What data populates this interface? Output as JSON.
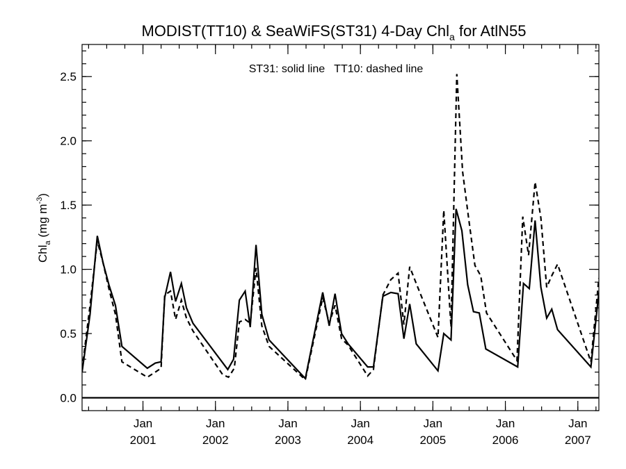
{
  "chart_data": {
    "type": "line",
    "title": {
      "main": "MODIST(TT10) & SeaWiFS(ST31) 4-Day Chl",
      "sub": "a",
      "suffix": " for AtlN55"
    },
    "annotation": "ST31: solid line   TT10: dashed line",
    "ylabel": {
      "main": "Chl",
      "sub": "a",
      "mid": " (mg m",
      "sup": "-3",
      "end": ")"
    },
    "xlim": [
      2000.16,
      2007.29
    ],
    "ylim": [
      -0.1,
      2.75
    ],
    "y_ticks": [
      {
        "value": 0.0,
        "label": "0.0"
      },
      {
        "value": 0.5,
        "label": "0.5"
      },
      {
        "value": 1.0,
        "label": "1.0"
      },
      {
        "value": 1.5,
        "label": "1.5"
      },
      {
        "value": 2.0,
        "label": "2.0"
      },
      {
        "value": 2.5,
        "label": "2.5"
      }
    ],
    "y_minor_step": 0.1,
    "x_ticks": [
      {
        "value": 2001.0,
        "month": "Jan",
        "year": "2001"
      },
      {
        "value": 2002.0,
        "month": "Jan",
        "year": "2002"
      },
      {
        "value": 2003.0,
        "month": "Jan",
        "year": "2003"
      },
      {
        "value": 2004.0,
        "month": "Jan",
        "year": "2004"
      },
      {
        "value": 2005.0,
        "month": "Jan",
        "year": "2005"
      },
      {
        "value": 2006.0,
        "month": "Jan",
        "year": "2006"
      },
      {
        "value": 2007.0,
        "month": "Jan",
        "year": "2007"
      }
    ],
    "x_minor_step": 0.25,
    "reference_line_y": 0.0,
    "grid": false,
    "legend": "none",
    "series": [
      {
        "style": "solid",
        "points": [
          [
            2000.16,
            0.2
          ],
          [
            2000.27,
            0.65
          ],
          [
            2000.37,
            1.26
          ],
          [
            2000.45,
            1.05
          ],
          [
            2000.53,
            0.88
          ],
          [
            2000.62,
            0.72
          ],
          [
            2000.71,
            0.4
          ],
          [
            2001.06,
            0.23
          ],
          [
            2001.17,
            0.27
          ],
          [
            2001.25,
            0.28
          ],
          [
            2001.3,
            0.78
          ],
          [
            2001.38,
            0.98
          ],
          [
            2001.45,
            0.75
          ],
          [
            2001.53,
            0.89
          ],
          [
            2001.6,
            0.7
          ],
          [
            2001.69,
            0.58
          ],
          [
            2002.17,
            0.22
          ],
          [
            2002.25,
            0.3
          ],
          [
            2002.33,
            0.76
          ],
          [
            2002.41,
            0.83
          ],
          [
            2002.48,
            0.55
          ],
          [
            2002.56,
            1.19
          ],
          [
            2002.64,
            0.65
          ],
          [
            2002.74,
            0.45
          ],
          [
            2003.24,
            0.15
          ],
          [
            2003.48,
            0.82
          ],
          [
            2003.57,
            0.56
          ],
          [
            2003.65,
            0.81
          ],
          [
            2003.74,
            0.5
          ],
          [
            2003.83,
            0.42
          ],
          [
            2004.1,
            0.24
          ],
          [
            2004.18,
            0.24
          ],
          [
            2004.31,
            0.79
          ],
          [
            2004.42,
            0.82
          ],
          [
            2004.52,
            0.81
          ],
          [
            2004.6,
            0.46
          ],
          [
            2004.68,
            0.73
          ],
          [
            2004.77,
            0.42
          ],
          [
            2005.07,
            0.21
          ],
          [
            2005.15,
            0.5
          ],
          [
            2005.25,
            0.45
          ],
          [
            2005.32,
            1.47
          ],
          [
            2005.4,
            1.3
          ],
          [
            2005.48,
            0.88
          ],
          [
            2005.56,
            0.67
          ],
          [
            2005.64,
            0.66
          ],
          [
            2005.73,
            0.38
          ],
          [
            2006.17,
            0.24
          ],
          [
            2006.25,
            0.89
          ],
          [
            2006.33,
            0.85
          ],
          [
            2006.41,
            1.38
          ],
          [
            2006.49,
            0.86
          ],
          [
            2006.57,
            0.62
          ],
          [
            2006.64,
            0.69
          ],
          [
            2006.72,
            0.53
          ],
          [
            2007.18,
            0.24
          ],
          [
            2007.29,
            0.82
          ]
        ]
      },
      {
        "style": "dashed",
        "points": [
          [
            2000.16,
            0.22
          ],
          [
            2000.27,
            0.72
          ],
          [
            2000.37,
            1.22
          ],
          [
            2000.45,
            1.05
          ],
          [
            2000.53,
            0.85
          ],
          [
            2000.62,
            0.65
          ],
          [
            2000.71,
            0.28
          ],
          [
            2001.06,
            0.16
          ],
          [
            2001.17,
            0.2
          ],
          [
            2001.25,
            0.23
          ],
          [
            2001.3,
            0.8
          ],
          [
            2001.38,
            0.83
          ],
          [
            2001.45,
            0.61
          ],
          [
            2001.53,
            0.76
          ],
          [
            2001.6,
            0.62
          ],
          [
            2001.69,
            0.52
          ],
          [
            2002.1,
            0.18
          ],
          [
            2002.18,
            0.16
          ],
          [
            2002.26,
            0.23
          ],
          [
            2002.33,
            0.59
          ],
          [
            2002.41,
            0.61
          ],
          [
            2002.48,
            0.58
          ],
          [
            2002.56,
            1.01
          ],
          [
            2002.64,
            0.56
          ],
          [
            2002.74,
            0.4
          ],
          [
            2003.24,
            0.14
          ],
          [
            2003.48,
            0.78
          ],
          [
            2003.57,
            0.58
          ],
          [
            2003.65,
            0.72
          ],
          [
            2003.74,
            0.46
          ],
          [
            2003.83,
            0.41
          ],
          [
            2004.1,
            0.17
          ],
          [
            2004.18,
            0.22
          ],
          [
            2004.31,
            0.8
          ],
          [
            2004.42,
            0.92
          ],
          [
            2004.52,
            0.97
          ],
          [
            2004.6,
            0.57
          ],
          [
            2004.68,
            1.02
          ],
          [
            2004.77,
            0.89
          ],
          [
            2005.07,
            0.47
          ],
          [
            2005.15,
            1.46
          ],
          [
            2005.25,
            0.55
          ],
          [
            2005.33,
            2.52
          ],
          [
            2005.41,
            1.76
          ],
          [
            2005.49,
            1.41
          ],
          [
            2005.58,
            1.03
          ],
          [
            2005.66,
            0.95
          ],
          [
            2005.74,
            0.66
          ],
          [
            2006.16,
            0.29
          ],
          [
            2006.24,
            1.41
          ],
          [
            2006.32,
            1.11
          ],
          [
            2006.41,
            1.68
          ],
          [
            2006.49,
            1.4
          ],
          [
            2006.57,
            0.86
          ],
          [
            2006.64,
            0.95
          ],
          [
            2006.72,
            1.04
          ],
          [
            2007.18,
            0.28
          ],
          [
            2007.29,
            0.93
          ]
        ]
      }
    ]
  }
}
